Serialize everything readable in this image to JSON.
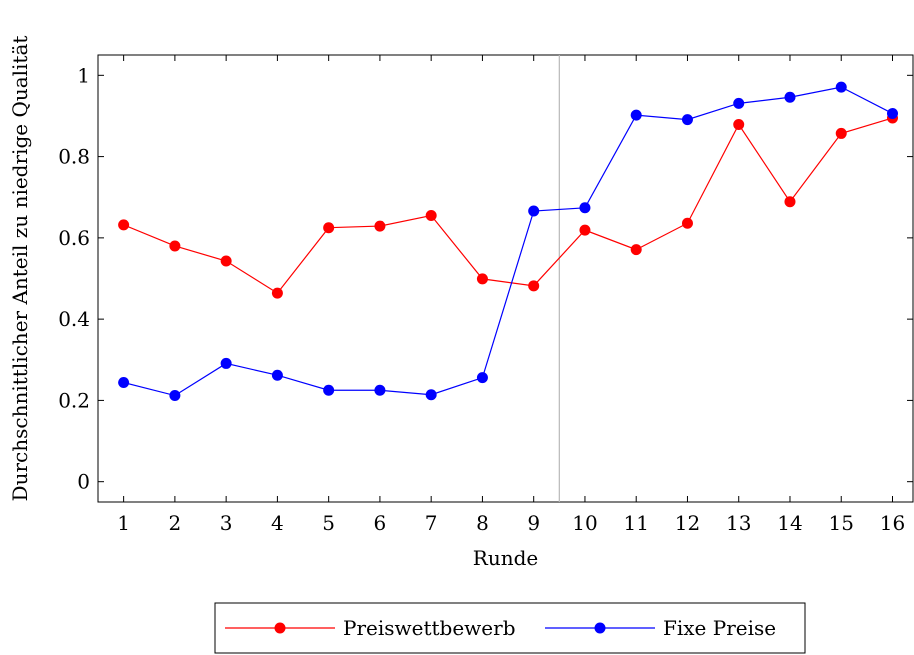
{
  "chart_data": {
    "type": "line",
    "title": "",
    "xlabel": "Runde",
    "ylabel": "Durchschnittlicher Anteil zu niedrige Qualität",
    "x": [
      1,
      2,
      3,
      4,
      5,
      6,
      7,
      8,
      9,
      10,
      11,
      12,
      13,
      14,
      15,
      16
    ],
    "xlim": [
      0.5,
      16.4
    ],
    "ylim": [
      -0.05,
      1.05
    ],
    "xticks": [
      "1",
      "2",
      "3",
      "4",
      "5",
      "6",
      "7",
      "8",
      "9",
      "10",
      "11",
      "12",
      "13",
      "14",
      "15",
      "16"
    ],
    "yticks": [
      {
        "value": 0,
        "label": "0"
      },
      {
        "value": 0.2,
        "label": "0.2"
      },
      {
        "value": 0.4,
        "label": "0.4"
      },
      {
        "value": 0.6,
        "label": "0.6"
      },
      {
        "value": 0.8,
        "label": "0.8"
      },
      {
        "value": 1,
        "label": "1"
      }
    ],
    "grid": false,
    "vertical_line_x": 9.5,
    "legend_position": "bottom-center",
    "series": [
      {
        "name": "Preiswettbewerb",
        "color": "#ff0000",
        "values": [
          0.632,
          0.58,
          0.543,
          0.464,
          0.625,
          0.629,
          0.655,
          0.499,
          0.482,
          0.619,
          0.571,
          0.636,
          0.879,
          0.689,
          0.857,
          0.895
        ]
      },
      {
        "name": "Fixe Preise",
        "color": "#0000ff",
        "values": [
          0.244,
          0.212,
          0.291,
          0.262,
          0.225,
          0.225,
          0.214,
          0.256,
          0.666,
          0.674,
          0.902,
          0.891,
          0.931,
          0.946,
          0.971,
          0.906
        ]
      }
    ]
  }
}
